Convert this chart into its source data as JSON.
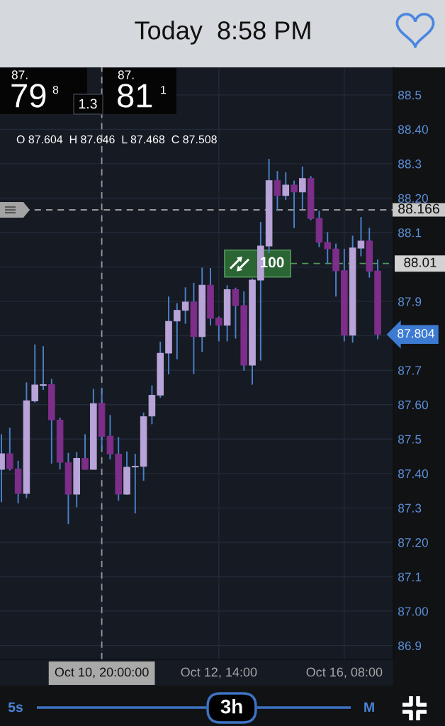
{
  "chart_data": {
    "type": "candlestick",
    "title": "Today  8:58 PM",
    "categories": [
      null,
      null,
      null,
      null,
      null,
      null,
      null,
      null,
      null,
      null,
      null,
      null,
      "Oct 10, 20:00:00",
      null,
      null,
      null,
      null,
      null,
      null,
      null,
      null,
      null,
      null,
      null,
      null,
      null,
      "Oct 12, 14:00",
      null,
      null,
      null,
      null,
      null,
      null,
      null,
      null,
      null,
      null,
      null,
      null,
      null,
      null,
      "Oct 16, 08:00",
      null,
      null,
      null,
      null
    ],
    "ohlc": [
      [
        87.412,
        87.514,
        87.317,
        87.457
      ],
      [
        87.457,
        87.533,
        87.409,
        87.414
      ],
      [
        87.413,
        87.437,
        87.313,
        87.342
      ],
      [
        87.342,
        87.665,
        87.328,
        87.611
      ],
      [
        87.611,
        87.775,
        87.606,
        87.657
      ],
      [
        87.656,
        87.77,
        87.643,
        87.658
      ],
      [
        87.658,
        87.675,
        87.429,
        87.556
      ],
      [
        87.555,
        87.562,
        87.412,
        87.433
      ],
      [
        87.431,
        87.46,
        87.253,
        87.34
      ],
      [
        87.34,
        87.462,
        87.302,
        87.444
      ],
      [
        87.444,
        87.514,
        87.411,
        87.412
      ],
      [
        87.412,
        87.646,
        87.411,
        87.603
      ],
      [
        87.604,
        87.646,
        87.468,
        87.508
      ],
      [
        87.508,
        87.57,
        87.441,
        87.457
      ],
      [
        87.456,
        87.506,
        87.321,
        87.34
      ],
      [
        87.34,
        87.464,
        87.338,
        87.418
      ],
      [
        87.419,
        87.457,
        87.284,
        87.421
      ],
      [
        87.421,
        87.577,
        87.379,
        87.565
      ],
      [
        87.567,
        87.656,
        87.543,
        87.627
      ],
      [
        87.628,
        87.783,
        87.62,
        87.749
      ],
      [
        87.75,
        87.914,
        87.688,
        87.842
      ],
      [
        87.843,
        87.895,
        87.732,
        87.874
      ],
      [
        87.874,
        87.941,
        87.835,
        87.898
      ],
      [
        87.898,
        87.954,
        87.689,
        87.798
      ],
      [
        87.798,
        87.998,
        87.753,
        87.947
      ],
      [
        87.947,
        87.997,
        87.83,
        87.851
      ],
      [
        87.851,
        87.856,
        87.784,
        87.831
      ],
      [
        87.831,
        87.947,
        87.784,
        87.934
      ],
      [
        87.934,
        87.94,
        87.792,
        87.888
      ],
      [
        87.888,
        87.929,
        87.699,
        87.715
      ],
      [
        87.715,
        87.967,
        87.658,
        87.962
      ],
      [
        87.962,
        88.131,
        87.728,
        88.061
      ],
      [
        88.061,
        88.314,
        88.04,
        88.251
      ],
      [
        88.251,
        88.279,
        88.163,
        88.208
      ],
      [
        88.208,
        88.275,
        88.195,
        88.238
      ],
      [
        88.238,
        88.251,
        88.113,
        88.218
      ],
      [
        88.218,
        88.292,
        88.168,
        88.257
      ],
      [
        88.257,
        88.264,
        88.136,
        88.141
      ],
      [
        88.141,
        88.163,
        88.058,
        88.072
      ],
      [
        88.071,
        88.101,
        88.009,
        88.053
      ],
      [
        88.052,
        88.068,
        87.914,
        87.989
      ],
      [
        87.989,
        88.053,
        87.784,
        87.802
      ],
      [
        87.802,
        88.091,
        87.78,
        88.055
      ],
      [
        88.055,
        88.145,
        88.031,
        88.075
      ],
      [
        88.075,
        88.114,
        87.969,
        87.988
      ],
      [
        87.988,
        88.022,
        87.79,
        87.804
      ]
    ],
    "colors": [
      "#b8a4d8",
      "#7c2e89",
      "#7c2e89",
      "#b8a4d8",
      "#b8a4d8",
      "#b8a4d8",
      "#7c2e89",
      "#7c2e89",
      "#7c2e89",
      "#b8a4d8",
      "#7c2e89",
      "#b8a4d8",
      "#7c2e89",
      "#7c2e89",
      "#7c2e89",
      "#b8a4d8",
      "#b8a4d8",
      "#b8a4d8",
      "#b8a4d8",
      "#b8a4d8",
      "#b8a4d8",
      "#b8a4d8",
      "#b8a4d8",
      "#7c2e89",
      "#b8a4d8",
      "#7c2e89",
      "#7c2e89",
      "#b8a4d8",
      "#7c2e89",
      "#7c2e89",
      "#b8a4d8",
      "#b8a4d8",
      "#b8a4d8",
      "#7c2e89",
      "#b8a4d8",
      "#7c2e89",
      "#b8a4d8",
      "#7c2e89",
      "#7c2e89",
      "#7c2e89",
      "#7c2e89",
      "#7c2e89",
      "#b8a4d8",
      "#b8a4d8",
      "#7c2e89",
      "#7c2e89"
    ],
    "color": "#4a80c8",
    "ylim": [
      86.86,
      88.58
    ],
    "yticks": [
      86.9,
      {
        "value": 87.0,
        "label": "87.00"
      },
      87.1,
      {
        "value": 87.2,
        "label": "87.20"
      },
      87.3,
      {
        "value": 87.4,
        "label": "87.40"
      },
      87.5,
      {
        "value": 87.6,
        "label": "87.60"
      },
      87.7,
      {
        "value": 87.8,
        "label": null
      },
      87.9,
      {
        "value": 88.0,
        "label": null
      },
      88.1,
      {
        "value": 88.2,
        "label": "88.20"
      },
      88.3,
      {
        "value": 88.4,
        "label": "88.40"
      },
      88.5
    ],
    "grid": true,
    "ref_lines": [
      {
        "axis": "y",
        "value": 88.166,
        "label": "88.166",
        "color": "#9a9a9a",
        "line_style": "dashed"
      },
      {
        "axis": "y",
        "value": 88.01,
        "label": "88.01",
        "color": "#4f9a55",
        "line_style": "dashed"
      },
      {
        "axis": "x",
        "value": "Oct 10, 20:00:00",
        "color": "#9a9a9a",
        "line_style": "dashed"
      }
    ],
    "annotations": [
      "87.",
      "79",
      "8",
      "1.3",
      "87.",
      "81",
      "1",
      "O 87.604  H 87.646  L 87.468  C 87.508",
      "100",
      "87.804",
      "5s",
      "3h",
      "M"
    ]
  }
}
